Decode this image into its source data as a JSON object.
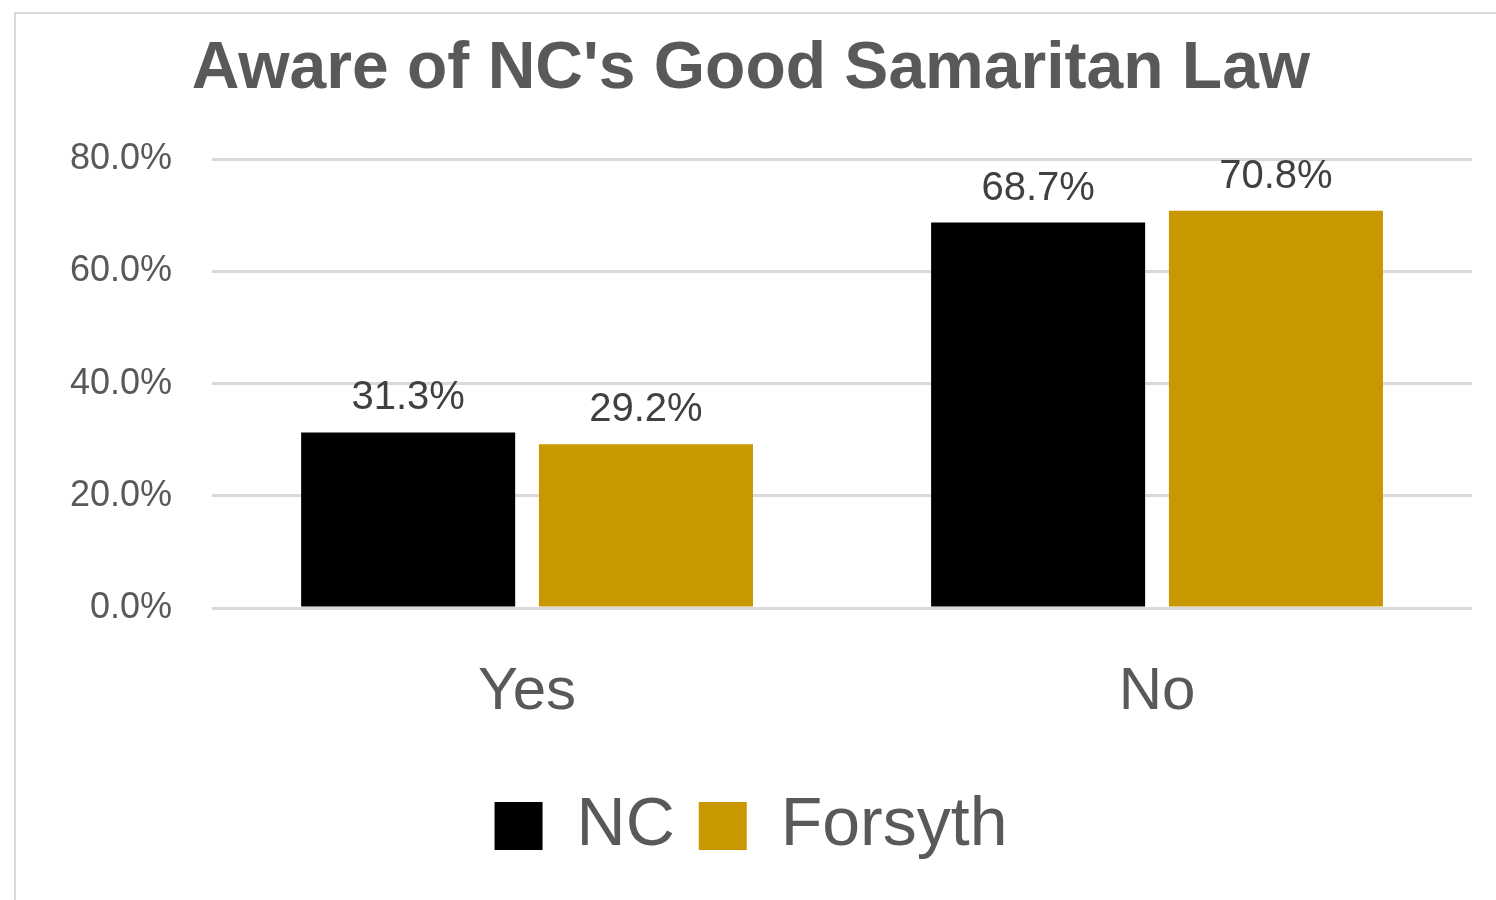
{
  "chart_data": {
    "type": "bar",
    "title": "Aware of NC's Good Samaritan Law",
    "categories": [
      "Yes",
      "No"
    ],
    "series": [
      {
        "name": "NC",
        "color": "#000000",
        "values": [
          31.3,
          68.7
        ],
        "value_labels": [
          "31.3%",
          "68.7%"
        ]
      },
      {
        "name": "Forsyth",
        "color": "#c99700",
        "values": [
          29.2,
          70.8
        ],
        "value_labels": [
          "29.2%",
          "70.8%"
        ]
      }
    ],
    "ylim": [
      0,
      80
    ],
    "yticks": [
      {
        "value": 0,
        "label": "0.0%"
      },
      {
        "value": 20,
        "label": "20.0%"
      },
      {
        "value": 40,
        "label": "40.0%"
      },
      {
        "value": 60,
        "label": "60.0%"
      },
      {
        "value": 80,
        "label": "80.0%"
      }
    ],
    "grid": "y",
    "legend": "bottom"
  }
}
